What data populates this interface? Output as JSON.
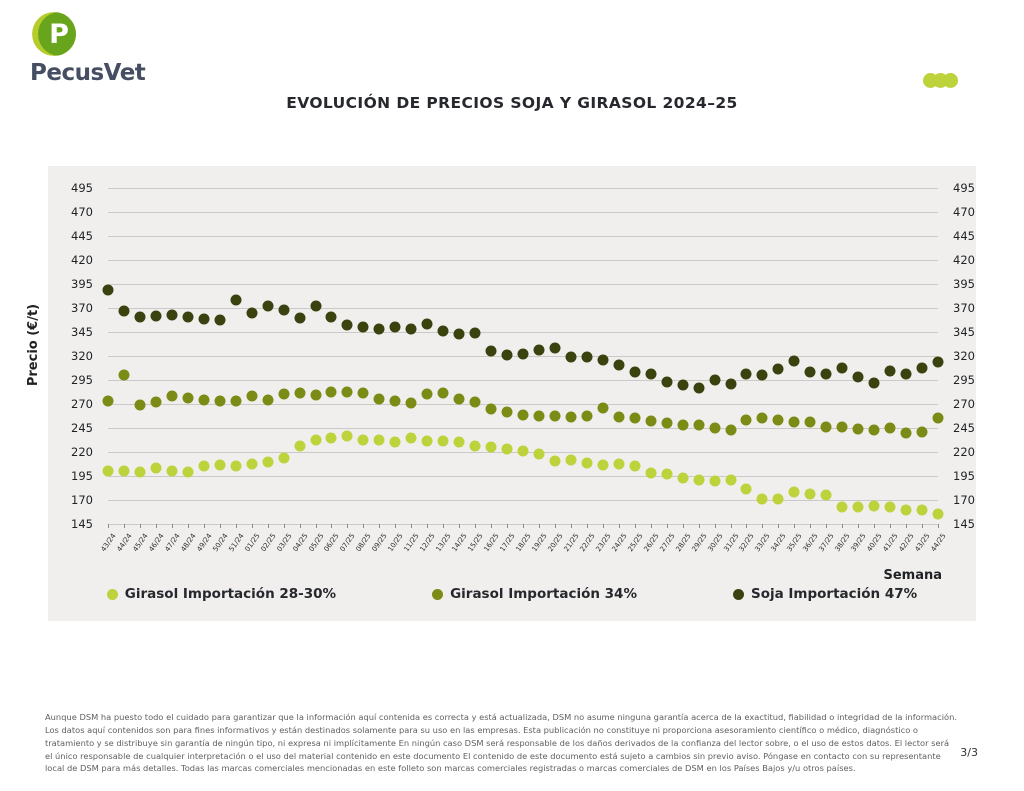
{
  "brand": {
    "name": "PecusVet",
    "logo_colors": {
      "lime": "#b6cc2b",
      "green": "#68a41c",
      "letter": "#ffffff",
      "text": "#454e63"
    }
  },
  "header": {
    "title": "EVOLUCIÓN DE PRECIOS SOJA Y GIRASOL 2024–25",
    "dots_color": "#bdd23b"
  },
  "chart_data": {
    "type": "scatter",
    "title": "EVOLUCIÓN DE PRECIOS SOJA Y GIRASOL 2024–25",
    "xlabel": "Semana",
    "ylabel": "Precio (€/t)",
    "ylim": [
      145,
      495
    ],
    "yticks": [
      495,
      470,
      445,
      420,
      395,
      370,
      345,
      320,
      295,
      270,
      245,
      220,
      195,
      170,
      145
    ],
    "grid": true,
    "legend_position": "bottom",
    "background": "#f0efed",
    "categories": [
      "43/24",
      "44/24",
      "45/24",
      "46/24",
      "47/24",
      "48/24",
      "49/24",
      "50/24",
      "51/24",
      "01/25",
      "02/25",
      "03/25",
      "04/25",
      "05/25",
      "06/25",
      "07/25",
      "08/25",
      "09/25",
      "10/25",
      "11/25",
      "12/25",
      "13/25",
      "14/25",
      "15/25",
      "16/25",
      "17/25",
      "18/25",
      "19/25",
      "20/25",
      "21/25",
      "22/25",
      "23/25",
      "24/25",
      "25/25",
      "26/25",
      "27/25",
      "28/25",
      "29/25",
      "30/25",
      "31/25",
      "32/25",
      "33/25",
      "34/25",
      "35/25",
      "36/25",
      "37/25",
      "38/25",
      "39/25",
      "40/25",
      "41/25",
      "42/25",
      "43/25",
      "44/25"
    ],
    "series": [
      {
        "name": "Girasol Importación 28-30%",
        "color": "#bdd23b",
        "values": [
          200,
          200,
          199,
          203,
          200,
          199,
          205,
          206,
          205,
          207,
          210,
          214,
          226,
          232,
          235,
          237,
          233,
          232,
          230,
          235,
          231,
          231,
          230,
          226,
          225,
          223,
          221,
          218,
          211,
          212,
          209,
          206,
          207,
          205,
          198,
          197,
          193,
          191,
          190,
          191,
          181,
          171,
          171,
          178,
          176,
          175,
          163,
          163,
          164,
          163,
          160,
          160,
          155
        ]
      },
      {
        "name": "Girasol Importación 34%",
        "color": "#7c8b16",
        "values": [
          273,
          300,
          269,
          272,
          278,
          276,
          274,
          273,
          273,
          278,
          274,
          280,
          281,
          279,
          282,
          282,
          281,
          275,
          273,
          271,
          280,
          281,
          275,
          272,
          265,
          262,
          259,
          258,
          258,
          256,
          258,
          266,
          256,
          255,
          252,
          250,
          248,
          248,
          245,
          243,
          253,
          255,
          253,
          251,
          251,
          246,
          246,
          244,
          243,
          245,
          240,
          241,
          255
        ]
      },
      {
        "name": "Soja Importación 47%",
        "color": "#3a430f",
        "values": [
          389,
          367,
          361,
          362,
          363,
          361,
          359,
          357,
          378,
          365,
          372,
          368,
          360,
          372,
          361,
          352,
          350,
          348,
          350,
          348,
          353,
          346,
          343,
          344,
          325,
          321,
          322,
          326,
          328,
          319,
          319,
          316,
          311,
          303,
          301,
          293,
          290,
          287,
          295,
          291,
          301,
          300,
          306,
          315,
          303,
          301,
          307,
          298,
          292,
          304,
          301,
          308,
          314
        ]
      }
    ]
  },
  "footer": {
    "disclaimer": "Aunque DSM ha puesto todo el cuidado para garantizar que la información aquí contenida es correcta y está actualizada, DSM no asume ninguna garantía acerca de la exactitud, fiabilidad o integridad de la información. Los datos aquí contenidos son para fines informativos y están destinados solamente para su uso en las empresas. Esta publicación no constituye ni proporciona asesoramiento científico o médico, diagnóstico o tratamiento y se distribuye sin garantía de ningún tipo, ni expresa ni implícitamente En ningún caso DSM será responsable de los daños derivados de la confianza del lector sobre, o el uso de estos datos. El lector será el único responsable de cualquier interpretación o el uso del material contenido en este documento El contenido de este documento está sujeto a cambios sin previo aviso. Póngase en contacto con su representante local de DSM para más detalles. Todas las marcas comerciales mencionadas en este folleto son marcas comerciales registradas o marcas comerciales de DSM en los Países Bajos y/u otros países.",
    "page": "3/3"
  }
}
